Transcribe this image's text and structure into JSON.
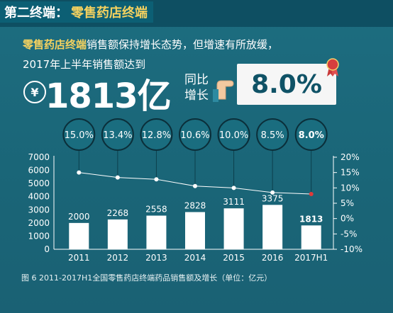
{
  "header": {
    "section_label": "第二终端：",
    "title": "零售药店终端"
  },
  "intro": {
    "highlight": "零售药店终端",
    "rest_line1": "销售额保持增长态势，但增速有所放缓，",
    "line2": "2017年上半年销售额达到",
    "currency_symbol": "¥",
    "total": "1813亿",
    "yoy_label_1": "同比",
    "yoy_label_2": "增长",
    "yoy_value": "8.0%"
  },
  "caption": "图 6  2011-2017H1全国零售药店终端药品销售额及增长（单位：亿元）",
  "colors": {
    "bar": "#ffffff",
    "growth_line": "#ffffff",
    "highlight_text": "#f4d15f",
    "last_point": "#e03a3a"
  },
  "chart_data": {
    "type": "bar",
    "categories": [
      "2011",
      "2012",
      "2013",
      "2014",
      "2015",
      "2016",
      "2017H1"
    ],
    "series": [
      {
        "values": [
          2000,
          2268,
          2558,
          2828,
          3111,
          3375,
          1813
        ]
      },
      {
        "values": [
          15.0,
          13.4,
          12.8,
          10.6,
          10.0,
          8.5,
          8.0
        ]
      }
    ],
    "value_labels": [
      "2000",
      "2268",
      "2558",
      "2828",
      "3111",
      "3375",
      "1813"
    ],
    "growth_labels": [
      "15.0%",
      "13.4%",
      "12.8%",
      "10.6%",
      "10.0%",
      "8.5%",
      "8.0%"
    ],
    "y_left": {
      "ticks": [
        "0",
        "1000",
        "2000",
        "3000",
        "4000",
        "5000",
        "6000",
        "7000"
      ],
      "range": [
        0,
        7000
      ]
    },
    "y_right": {
      "ticks": [
        "-10%",
        "-5%",
        "0%",
        "5%",
        "10%",
        "15%",
        "20%"
      ],
      "range": [
        -10,
        20
      ]
    },
    "grid": false,
    "legend": "none"
  }
}
